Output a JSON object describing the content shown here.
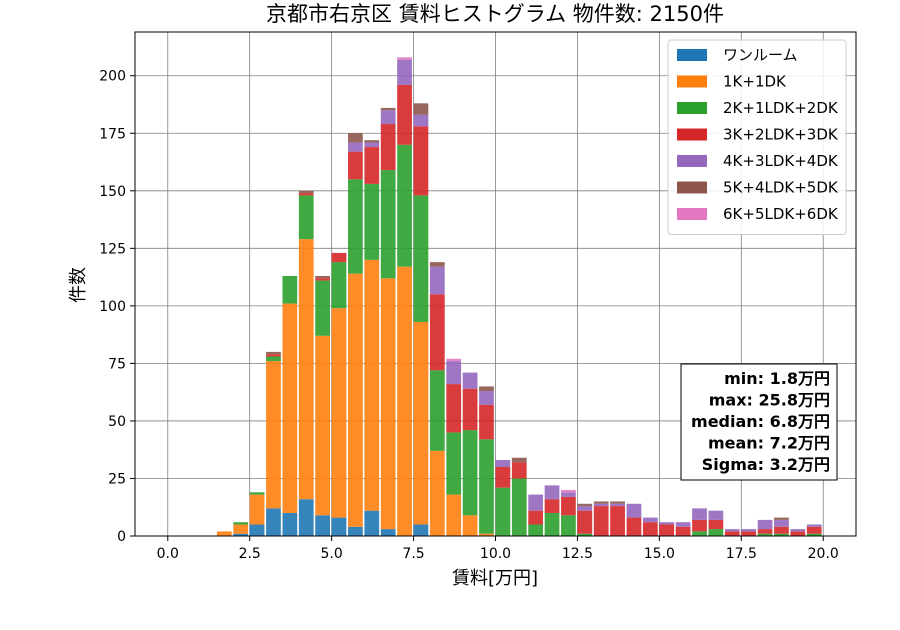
{
  "chart_data": {
    "type": "bar",
    "stacked": true,
    "title": "京都市右京区 賃料ヒストグラム  物件数: 2150件",
    "xlabel": "賃料[万円]",
    "ylabel": "件数",
    "xlim": [
      -1,
      21
    ],
    "ylim": [
      0,
      219
    ],
    "xticks": [
      0.0,
      2.5,
      5.0,
      7.5,
      10.0,
      12.5,
      15.0,
      17.5,
      20.0
    ],
    "xtick_labels": [
      "0.0",
      "2.5",
      "5.0",
      "7.5",
      "10.0",
      "12.5",
      "15.0",
      "17.5",
      "20.0"
    ],
    "yticks": [
      0,
      25,
      50,
      75,
      100,
      125,
      150,
      175,
      200
    ],
    "ytick_labels": [
      "0",
      "25",
      "50",
      "75",
      "100",
      "125",
      "150",
      "175",
      "200"
    ],
    "grid": true,
    "legend_position": "top-right",
    "bin_width": 0.5,
    "bin_starts": [
      1.5,
      2.0,
      2.5,
      3.0,
      3.5,
      4.0,
      4.5,
      5.0,
      5.5,
      6.0,
      6.5,
      7.0,
      7.5,
      8.0,
      8.5,
      9.0,
      9.5,
      10.0,
      10.5,
      11.0,
      11.5,
      12.0,
      12.5,
      13.0,
      13.5,
      14.0,
      14.5,
      15.0,
      15.5,
      16.0,
      16.5,
      17.0,
      17.5,
      18.0,
      18.5,
      19.0,
      19.5
    ],
    "series": [
      {
        "name": "ワンルーム",
        "color": "#1f77b4",
        "values": [
          0,
          1,
          5,
          12,
          10,
          16,
          9,
          8,
          4,
          11,
          3,
          0,
          5,
          0,
          0,
          0,
          0,
          0,
          0,
          0,
          0,
          0,
          0,
          0,
          0,
          0,
          0,
          0,
          0,
          0,
          0,
          0,
          0,
          0,
          0,
          0,
          0
        ]
      },
      {
        "name": "1K+1DK",
        "color": "#ff7f0e",
        "values": [
          2,
          4,
          13,
          64,
          91,
          113,
          78,
          91,
          110,
          109,
          109,
          117,
          88,
          37,
          18,
          9,
          1,
          0,
          0,
          0,
          0,
          0,
          0,
          0,
          0,
          0,
          0,
          0,
          0,
          0,
          0,
          0,
          0,
          0,
          0,
          0,
          0
        ]
      },
      {
        "name": "2K+1LDK+2DK",
        "color": "#2ca02c",
        "values": [
          0,
          1,
          1,
          2,
          12,
          19,
          24,
          20,
          41,
          33,
          47,
          53,
          55,
          35,
          27,
          37,
          41,
          21,
          25,
          5,
          10,
          9,
          1,
          0,
          0,
          0,
          0,
          0,
          0,
          2,
          3,
          0,
          0,
          1,
          1,
          0,
          1
        ]
      },
      {
        "name": "3K+2LDK+3DK",
        "color": "#d62728",
        "values": [
          0,
          0,
          0,
          1,
          0,
          1,
          1,
          4,
          12,
          16,
          20,
          26,
          30,
          33,
          21,
          18,
          15,
          9,
          7,
          6,
          6,
          8,
          10,
          13,
          13,
          8,
          6,
          5,
          4,
          5,
          4,
          2,
          2,
          2,
          3,
          2,
          3
        ]
      },
      {
        "name": "4K+3LDK+4DK",
        "color": "#9467bd",
        "values": [
          0,
          0,
          0,
          0,
          0,
          0,
          0,
          0,
          4,
          2,
          6,
          11,
          5,
          12,
          10,
          7,
          6,
          3,
          0,
          7,
          6,
          2,
          2,
          1,
          1,
          6,
          2,
          1,
          2,
          5,
          4,
          1,
          1,
          4,
          3,
          1,
          1
        ]
      },
      {
        "name": "5K+4LDK+5DK",
        "color": "#8c564b",
        "values": [
          0,
          0,
          0,
          1,
          0,
          1,
          1,
          0,
          4,
          1,
          1,
          0,
          5,
          2,
          0,
          0,
          2,
          0,
          2,
          0,
          0,
          0,
          1,
          1,
          1,
          0,
          0,
          0,
          0,
          0,
          0,
          0,
          0,
          0,
          1,
          0,
          0
        ]
      },
      {
        "name": "6K+5LDK+6DK",
        "color": "#e377c2",
        "values": [
          0,
          0,
          0,
          0,
          0,
          0,
          0,
          0,
          0,
          0,
          0,
          1,
          0,
          0,
          1,
          0,
          0,
          0,
          0,
          0,
          0,
          1,
          0,
          0,
          0,
          0,
          0,
          0,
          0,
          0,
          0,
          0,
          0,
          0,
          0,
          0,
          0
        ]
      }
    ],
    "stats_box": [
      "min: 1.8万円",
      "max: 25.8万円",
      "median: 6.8万円",
      "mean: 7.2万円",
      "Sigma: 3.2万円"
    ]
  }
}
